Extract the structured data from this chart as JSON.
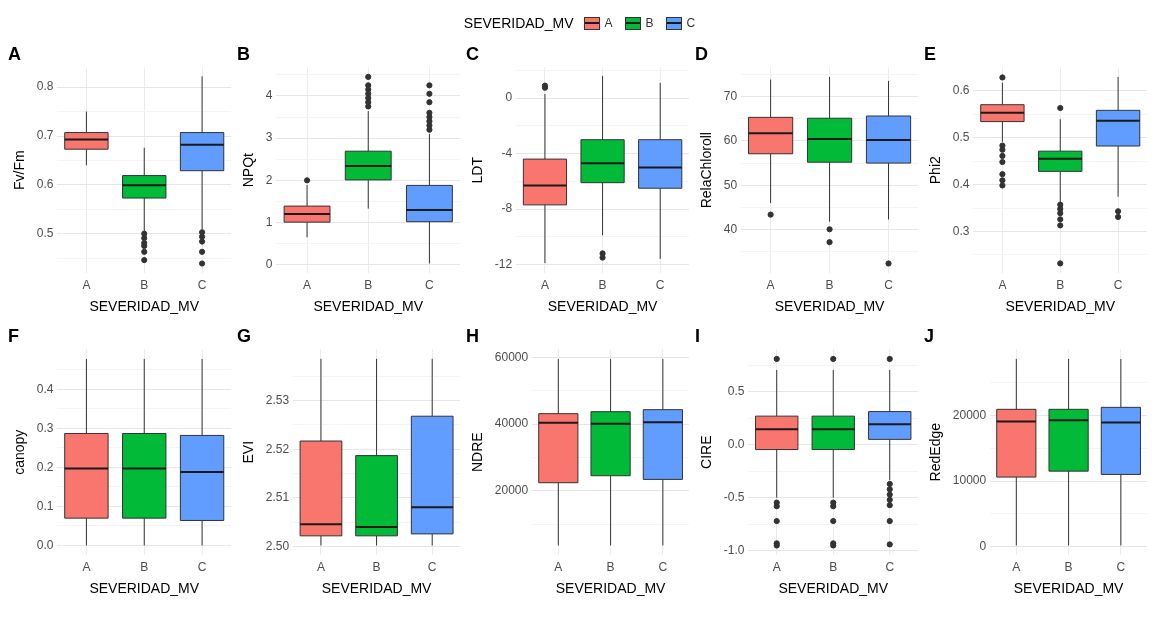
{
  "chart_data": [
    {
      "type": "box",
      "title": "A",
      "xlabel": "SEVERIDAD_MV",
      "ylabel": "Fv/Fm",
      "legend": "top",
      "legend_title": "SEVERIDAD_MV",
      "grid": true,
      "categories": [
        "A",
        "B",
        "C"
      ],
      "ylim": [
        0.42,
        0.84
      ],
      "yticks": [
        {
          "value": 0.45,
          "label": null
        },
        0.5,
        {
          "value": 0.55,
          "label": null
        },
        0.6,
        {
          "value": 0.65,
          "label": null
        },
        0.7,
        {
          "value": 0.75,
          "label": null
        },
        0.8
      ],
      "series": [
        {
          "name": "A",
          "color": "#f8766d",
          "boxes": [
            {
              "low": 0.64,
              "q1": 0.673,
              "median": 0.693,
              "q3": 0.707,
              "high": 0.75
            },
            null,
            null
          ]
        },
        {
          "name": "B",
          "color": "#00ba38",
          "boxes": [
            null,
            {
              "low": 0.503,
              "q1": 0.573,
              "median": 0.599,
              "q3": 0.619,
              "high": 0.676,
              "outliers": [
                0.5,
                0.491,
                0.481,
                0.475,
                0.463,
                0.446
              ]
            },
            null
          ]
        },
        {
          "name": "C",
          "color": "#619cff",
          "boxes": [
            null,
            null,
            {
              "low": 0.509,
              "q1": 0.629,
              "median": 0.682,
              "q3": 0.707,
              "high": 0.822,
              "outliers": [
                0.503,
                0.494,
                0.484,
                0.463,
                0.439
              ]
            }
          ]
        }
      ]
    },
    {
      "type": "box",
      "title": "B",
      "xlabel": "SEVERIDAD_MV",
      "ylabel": "NPQt",
      "grid": true,
      "categories": [
        "A",
        "B",
        "C"
      ],
      "ylim": [
        -0.19,
        4.67
      ],
      "yticks": [
        0,
        {
          "value": 0.5,
          "label": null
        },
        1,
        {
          "value": 1.5,
          "label": null
        },
        2,
        {
          "value": 2.5,
          "label": null
        },
        3,
        {
          "value": 3.5,
          "label": null
        },
        4,
        {
          "value": 4.5,
          "label": null
        }
      ],
      "series": [
        {
          "color": "#f8766d",
          "boxes": [
            {
              "low": 0.65,
              "q1": 1.01,
              "median": 1.2,
              "q3": 1.39,
              "high": 1.89,
              "outliers": [
                2.0
              ]
            },
            null,
            null
          ]
        },
        {
          "color": "#00ba38",
          "boxes": [
            null,
            {
              "low": 1.33,
              "q1": 2.01,
              "median": 2.34,
              "q3": 2.69,
              "high": 3.64,
              "outliers": [
                3.75,
                3.85,
                3.95,
                4.05,
                4.15,
                4.25,
                4.45
              ]
            },
            null
          ]
        },
        {
          "color": "#619cff",
          "boxes": [
            null,
            null,
            {
              "low": 0.03,
              "q1": 1.02,
              "median": 1.3,
              "q3": 1.88,
              "high": 3.1,
              "outliers": [
                3.2,
                3.3,
                3.4,
                3.5,
                3.6,
                3.85,
                4.05,
                4.25
              ]
            }
          ]
        }
      ]
    },
    {
      "type": "box",
      "title": "C",
      "xlabel": "SEVERIDAD_MV",
      "ylabel": "LDT",
      "grid": true,
      "categories": [
        "A",
        "B",
        "C"
      ],
      "ylim": [
        -12.6,
        2.2
      ],
      "yticks": [
        -12,
        {
          "value": -10,
          "label": null
        },
        -8,
        {
          "value": -6,
          "label": null
        },
        -4,
        {
          "value": -2,
          "label": null
        },
        0,
        {
          "value": 2,
          "label": null
        }
      ],
      "series": [
        {
          "color": "#f8766d",
          "boxes": [
            {
              "low": -11.9,
              "q1": -7.7,
              "median": -6.3,
              "q3": -4.4,
              "high": 0.3,
              "outliers": [
                0.9,
                0.75
              ]
            },
            null,
            null
          ]
        },
        {
          "color": "#00ba38",
          "boxes": [
            null,
            {
              "low": -9.9,
              "q1": -6.1,
              "median": -4.7,
              "q3": -3.0,
              "high": 1.6,
              "outliers": [
                -11.2,
                -11.5
              ]
            },
            null
          ]
        },
        {
          "color": "#619cff",
          "boxes": [
            null,
            null,
            {
              "low": -11.6,
              "q1": -6.5,
              "median": -5.0,
              "q3": -3.0,
              "high": 1.1
            }
          ]
        }
      ]
    },
    {
      "type": "box",
      "title": "D",
      "xlabel": "SEVERIDAD_MV",
      "ylabel": "RelaChloroll",
      "grid": true,
      "categories": [
        "A",
        "B",
        "C"
      ],
      "ylim": [
        30.3,
        76.5
      ],
      "yticks": [
        {
          "value": 35,
          "label": null
        },
        40,
        {
          "value": 45,
          "label": null
        },
        50,
        {
          "value": 55,
          "label": null
        },
        60,
        {
          "value": 65,
          "label": null
        },
        70,
        {
          "value": 75,
          "label": null
        }
      ],
      "series": [
        {
          "color": "#f8766d",
          "boxes": [
            {
              "low": 46.0,
              "q1": 57.1,
              "median": 61.7,
              "q3": 65.3,
              "high": 73.8,
              "outliers": [
                43.4
              ]
            },
            null,
            null
          ]
        },
        {
          "color": "#00ba38",
          "boxes": [
            null,
            {
              "low": 41.8,
              "q1": 55.2,
              "median": 60.4,
              "q3": 65.1,
              "high": 74.4,
              "outliers": [
                40.1,
                37.2
              ]
            },
            null
          ]
        },
        {
          "color": "#619cff",
          "boxes": [
            null,
            null,
            {
              "low": 42.3,
              "q1": 55.0,
              "median": 60.2,
              "q3": 65.6,
              "high": 73.5,
              "outliers": [
                32.4
              ]
            }
          ]
        }
      ]
    },
    {
      "type": "box",
      "title": "E",
      "xlabel": "SEVERIDAD_MV",
      "ylabel": "Phi2",
      "grid": true,
      "categories": [
        "A",
        "B",
        "C"
      ],
      "ylim": [
        0.212,
        0.649
      ],
      "yticks": [
        {
          "value": 0.25,
          "label": null
        },
        0.3,
        {
          "value": 0.35,
          "label": null
        },
        0.4,
        {
          "value": 0.45,
          "label": null
        },
        0.5,
        {
          "value": 0.55,
          "label": null
        },
        0.6
      ],
      "series": [
        {
          "color": "#f8766d",
          "boxes": [
            {
              "low": 0.491,
              "q1": 0.534,
              "median": 0.553,
              "q3": 0.57,
              "high": 0.617,
              "outliers": [
                0.628,
                0.483,
                0.474,
                0.461,
                0.448,
                0.422,
                0.409,
                0.398
              ]
            },
            null,
            null
          ]
        },
        {
          "color": "#00ba38",
          "boxes": [
            null,
            {
              "low": 0.361,
              "q1": 0.428,
              "median": 0.455,
              "q3": 0.471,
              "high": 0.539,
              "outliers": [
                0.563,
                0.357,
                0.348,
                0.339,
                0.326,
                0.313,
                0.232
              ]
            },
            null
          ]
        },
        {
          "color": "#619cff",
          "boxes": [
            null,
            null,
            {
              "low": 0.374,
              "q1": 0.482,
              "median": 0.536,
              "q3": 0.558,
              "high": 0.629,
              "outliers": [
                0.343,
                0.331
              ]
            }
          ]
        }
      ]
    },
    {
      "type": "box",
      "title": "F",
      "xlabel": "SEVERIDAD_MV",
      "ylabel": "canopy",
      "grid": true,
      "categories": [
        "A",
        "B",
        "C"
      ],
      "ylim": [
        -0.024,
        0.502
      ],
      "yticks": [
        {
          "value": 0,
          "label": "0.0"
        },
        {
          "value": 0.05,
          "label": null
        },
        0.1,
        {
          "value": 0.15,
          "label": null
        },
        0.2,
        {
          "value": 0.25,
          "label": null
        },
        0.3,
        {
          "value": 0.35,
          "label": null
        },
        0.4,
        {
          "value": 0.45,
          "label": null
        }
      ],
      "series": [
        {
          "color": "#f8766d",
          "boxes": [
            {
              "low": 0.0,
              "q1": 0.07,
              "median": 0.197,
              "q3": 0.287,
              "high": 0.478
            },
            null,
            null
          ]
        },
        {
          "color": "#00ba38",
          "boxes": [
            null,
            {
              "low": 0.0,
              "q1": 0.07,
              "median": 0.197,
              "q3": 0.287,
              "high": 0.478
            },
            null
          ]
        },
        {
          "color": "#619cff",
          "boxes": [
            null,
            null,
            {
              "low": 0.0,
              "q1": 0.064,
              "median": 0.188,
              "q3": 0.282,
              "high": 0.478
            }
          ]
        }
      ]
    },
    {
      "type": "box",
      "title": "G",
      "xlabel": "SEVERIDAD_MV",
      "ylabel": "EVI",
      "grid": true,
      "categories": [
        "A",
        "B",
        "C"
      ],
      "ylim": [
        2.4983,
        2.5405
      ],
      "yticks": [
        {
          "value": 2.5,
          "label": "2.50"
        },
        {
          "value": 2.505,
          "label": null
        },
        {
          "value": 2.51,
          "label": "2.51"
        },
        {
          "value": 2.515,
          "label": null
        },
        {
          "value": 2.52,
          "label": "2.52"
        },
        {
          "value": 2.525,
          "label": null
        },
        {
          "value": 2.53,
          "label": "2.53"
        },
        {
          "value": 2.535,
          "label": null
        }
      ],
      "series": [
        {
          "color": "#f8766d",
          "boxes": [
            {
              "low": 2.5002,
              "q1": 2.5022,
              "median": 2.5046,
              "q3": 2.5217,
              "high": 2.5386
            },
            null,
            null
          ]
        },
        {
          "color": "#00ba38",
          "boxes": [
            null,
            {
              "low": 2.5002,
              "q1": 2.5022,
              "median": 2.504,
              "q3": 2.5187,
              "high": 2.5386
            },
            null
          ]
        },
        {
          "color": "#619cff",
          "boxes": [
            null,
            null,
            {
              "low": 2.5002,
              "q1": 2.5026,
              "median": 2.5081,
              "q3": 2.5268,
              "high": 2.5386
            }
          ]
        }
      ]
    },
    {
      "type": "box",
      "title": "H",
      "xlabel": "SEVERIDAD_MV",
      "ylabel": "NDRE",
      "grid": true,
      "categories": [
        "A",
        "B",
        "C"
      ],
      "ylim": [
        800,
        62300
      ],
      "yticks": [
        {
          "value": 10000,
          "label": null
        },
        20000,
        {
          "value": 30000,
          "label": null
        },
        40000,
        {
          "value": 50000,
          "label": null
        },
        60000
      ],
      "series": [
        {
          "color": "#f8766d",
          "boxes": [
            {
              "low": 3600,
              "q1": 22400,
              "median": 40400,
              "q3": 43100,
              "high": 59500
            },
            null,
            null
          ]
        },
        {
          "color": "#00ba38",
          "boxes": [
            null,
            {
              "low": 3600,
              "q1": 24500,
              "median": 40100,
              "q3": 43700,
              "high": 59500
            },
            null
          ]
        },
        {
          "color": "#619cff",
          "boxes": [
            null,
            null,
            {
              "low": 3600,
              "q1": 23400,
              "median": 40500,
              "q3": 44300,
              "high": 59500
            }
          ]
        }
      ]
    },
    {
      "type": "box",
      "title": "I",
      "xlabel": "SEVERIDAD_MV",
      "ylabel": "CIRE",
      "grid": true,
      "categories": [
        "A",
        "B",
        "C"
      ],
      "ylim": [
        -1.038,
        0.896
      ],
      "yticks": [
        {
          "value": -1,
          "label": "-1.0"
        },
        {
          "value": -0.75,
          "label": null
        },
        -0.5,
        {
          "value": -0.25,
          "label": null
        },
        {
          "value": 0,
          "label": "0.0"
        },
        {
          "value": 0.25,
          "label": null
        },
        0.5,
        {
          "value": 0.75,
          "label": null
        }
      ],
      "series": [
        {
          "color": "#f8766d",
          "boxes": [
            {
              "low": -0.5,
              "q1": -0.046,
              "median": 0.146,
              "q3": 0.269,
              "high": 0.704,
              "outliers": [
                0.808,
                -0.546,
                -0.58,
                -0.72,
                -0.93,
                -0.95
              ]
            },
            null,
            null
          ]
        },
        {
          "color": "#00ba38",
          "boxes": [
            null,
            {
              "low": -0.5,
              "q1": -0.046,
              "median": 0.146,
              "q3": 0.269,
              "high": 0.704,
              "outliers": [
                0.808,
                -0.546,
                -0.58,
                -0.72,
                -0.93,
                -0.95
              ]
            },
            null
          ]
        },
        {
          "color": "#619cff",
          "boxes": [
            null,
            null,
            {
              "low": -0.335,
              "q1": 0.05,
              "median": 0.192,
              "q3": 0.312,
              "high": 0.704,
              "outliers": [
                0.808,
                -0.37,
                -0.42,
                -0.47,
                -0.52,
                -0.57,
                -0.72,
                -0.94
              ]
            }
          ]
        }
      ]
    },
    {
      "type": "box",
      "title": "J",
      "xlabel": "SEVERIDAD_MV",
      "ylabel": "RedEdge",
      "grid": true,
      "categories": [
        "A",
        "B",
        "C"
      ],
      "ylim": [
        -1218,
        29978
      ],
      "yticks": [
        0,
        {
          "value": 5000,
          "label": null
        },
        10000,
        {
          "value": 15000,
          "label": null
        },
        20000,
        {
          "value": 25000,
          "label": null
        }
      ],
      "series": [
        {
          "color": "#f8766d",
          "boxes": [
            {
              "low": 200,
              "q1": 10600,
              "median": 19060,
              "q3": 20900,
              "high": 28560
            },
            null,
            null
          ]
        },
        {
          "color": "#00ba38",
          "boxes": [
            null,
            {
              "low": 200,
              "q1": 11500,
              "median": 19250,
              "q3": 20900,
              "high": 28560
            },
            null
          ]
        },
        {
          "color": "#619cff",
          "boxes": [
            null,
            null,
            {
              "low": 200,
              "q1": 11000,
              "median": 18900,
              "q3": 21200,
              "high": 28560
            }
          ]
        }
      ]
    }
  ]
}
